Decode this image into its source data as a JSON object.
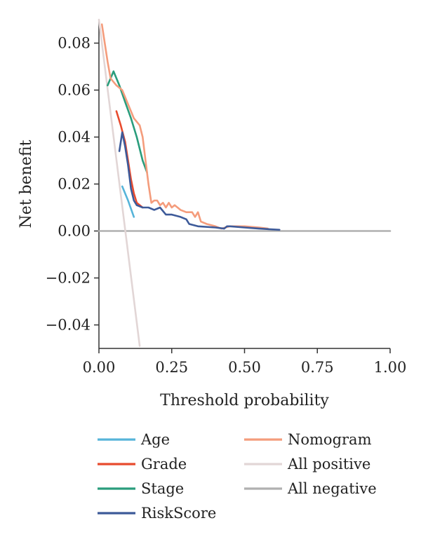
{
  "chart_data": {
    "type": "line",
    "title": "",
    "xlabel": "Threshold probability",
    "ylabel": "Net benefit",
    "xlim": [
      0,
      1
    ],
    "ylim": [
      -0.05,
      0.09
    ],
    "x_ticks": [
      0.0,
      0.25,
      0.5,
      0.75,
      1.0
    ],
    "x_tick_labels": [
      "0.00",
      "0.25",
      "0.50",
      "0.75",
      "1.00"
    ],
    "y_ticks": [
      -0.04,
      -0.02,
      0.0,
      0.02,
      0.04,
      0.06,
      0.08
    ],
    "y_tick_labels": [
      "−0.04",
      "−0.02",
      "0.00",
      "0.02",
      "0.04",
      "0.06",
      "0.08"
    ],
    "grid": false,
    "legend_position": "bottom",
    "series": [
      {
        "name": "Age",
        "color": "#56b4d9",
        "x": [
          0.08,
          0.1,
          0.12
        ],
        "y": [
          0.019,
          0.013,
          0.006
        ]
      },
      {
        "name": "Grade",
        "color": "#e84b2e",
        "x": [
          0.06,
          0.075,
          0.09,
          0.1,
          0.11,
          0.12,
          0.13,
          0.15
        ],
        "y": [
          0.051,
          0.045,
          0.038,
          0.03,
          0.022,
          0.016,
          0.012,
          0.01
        ]
      },
      {
        "name": "Stage",
        "color": "#2a9d7c",
        "x": [
          0.03,
          0.05,
          0.07,
          0.09,
          0.11,
          0.13,
          0.15,
          0.165
        ],
        "y": [
          0.062,
          0.068,
          0.062,
          0.055,
          0.048,
          0.04,
          0.03,
          0.025
        ]
      },
      {
        "name": "RiskScore",
        "color": "#3d5a99",
        "x": [
          0.07,
          0.08,
          0.09,
          0.1,
          0.11,
          0.12,
          0.13,
          0.15,
          0.17,
          0.19,
          0.21,
          0.23,
          0.25,
          0.28,
          0.3,
          0.31,
          0.34,
          0.4,
          0.43,
          0.44,
          0.45,
          0.5,
          0.55,
          0.62
        ],
        "y": [
          0.034,
          0.042,
          0.036,
          0.028,
          0.018,
          0.013,
          0.011,
          0.01,
          0.01,
          0.009,
          0.01,
          0.007,
          0.007,
          0.006,
          0.005,
          0.003,
          0.002,
          0.0015,
          0.001,
          0.002,
          0.002,
          0.0015,
          0.001,
          0.0005
        ]
      },
      {
        "name": "Nomogram",
        "color": "#f49c7c",
        "x": [
          0.01,
          0.02,
          0.03,
          0.04,
          0.06,
          0.08,
          0.1,
          0.12,
          0.14,
          0.15,
          0.16,
          0.17,
          0.18,
          0.19,
          0.2,
          0.21,
          0.22,
          0.23,
          0.24,
          0.25,
          0.26,
          0.27,
          0.28,
          0.3,
          0.32,
          0.33,
          0.34,
          0.35,
          0.37,
          0.4,
          0.42,
          0.45,
          0.5,
          0.55,
          0.58
        ],
        "y": [
          0.088,
          0.08,
          0.072,
          0.065,
          0.062,
          0.06,
          0.054,
          0.048,
          0.045,
          0.04,
          0.03,
          0.02,
          0.012,
          0.013,
          0.013,
          0.011,
          0.012,
          0.01,
          0.012,
          0.01,
          0.011,
          0.01,
          0.009,
          0.008,
          0.008,
          0.006,
          0.008,
          0.004,
          0.003,
          0.002,
          0.001,
          0.002,
          0.002,
          0.0015,
          0.001
        ]
      },
      {
        "name": "All positive",
        "color": "#e2d6d6",
        "x": [
          0.0,
          0.14
        ],
        "y": [
          0.09,
          -0.049
        ]
      },
      {
        "name": "All negative",
        "color": "#b0b0b0",
        "x": [
          0.0,
          1.0
        ],
        "y": [
          0.0,
          0.0
        ]
      }
    ]
  }
}
